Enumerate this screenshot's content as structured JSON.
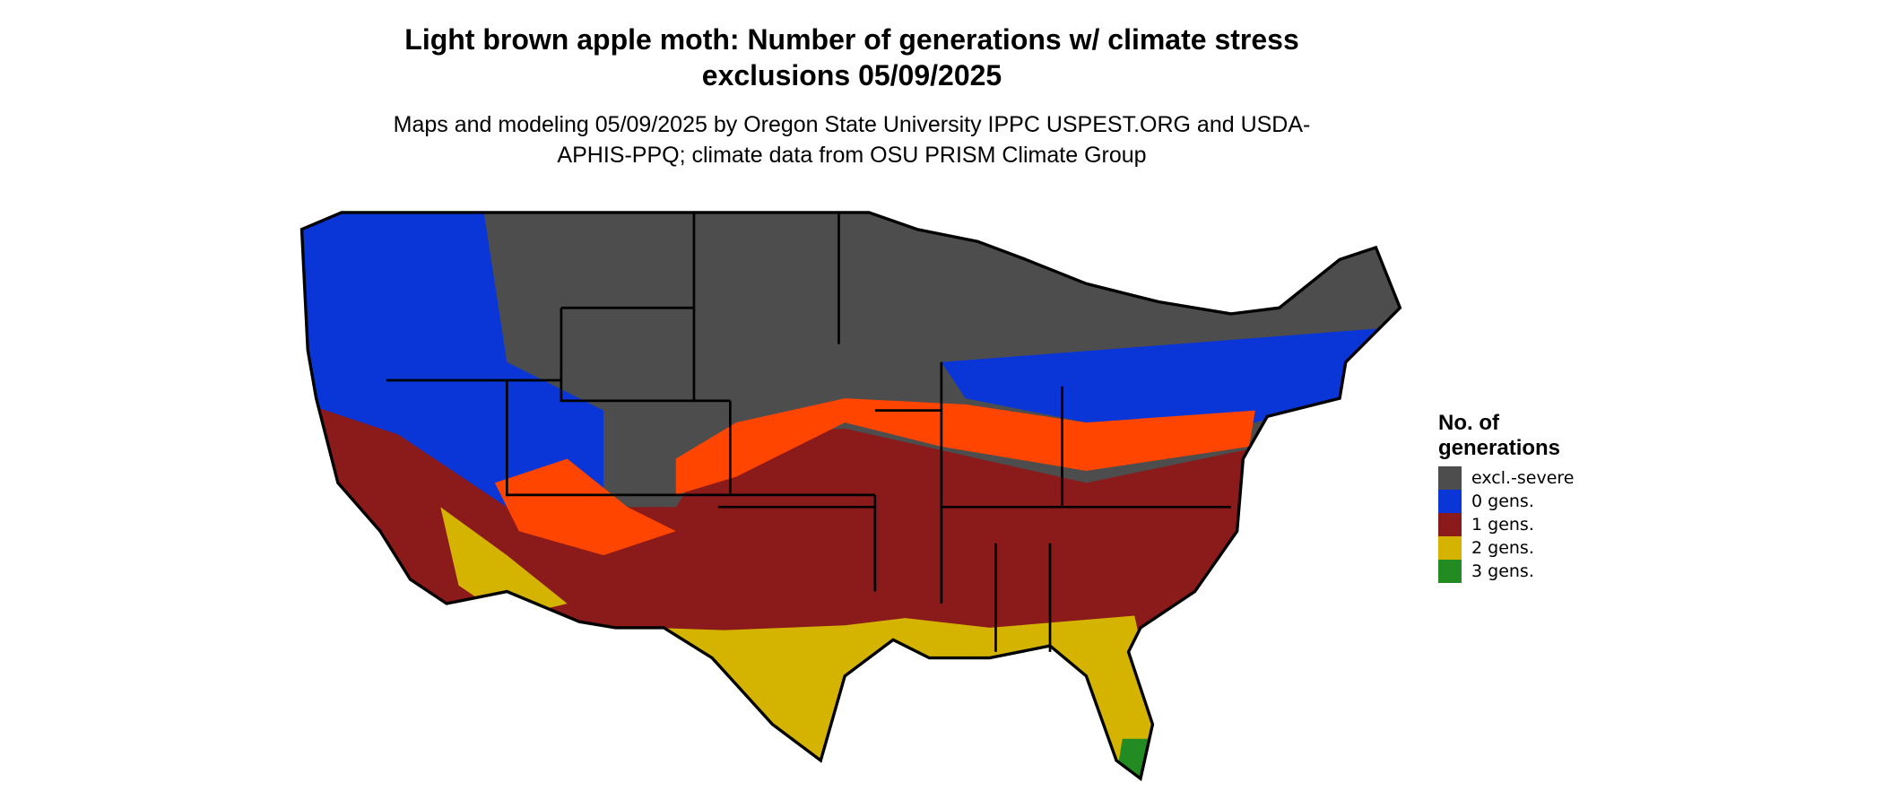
{
  "header": {
    "title": "Light brown apple moth: Number of generations w/ climate stress exclusions 05/09/2025",
    "subtitle": "Maps and modeling 05/09/2025 by Oregon State University IPPC USPEST.ORG and USDA-APHIS-PPQ; climate data from OSU PRISM Climate Group"
  },
  "legend": {
    "title": "No. of generations",
    "items": [
      {
        "label": "excl.-severe",
        "color": "#4d4d4d"
      },
      {
        "label": "0 gens.",
        "color": "#0a36d8"
      },
      {
        "label": "1 gens.",
        "color": "#8b1a1a"
      },
      {
        "label": "2 gens.",
        "color": "#d4b400"
      },
      {
        "label": "3 gens.",
        "color": "#228b22"
      }
    ]
  }
}
